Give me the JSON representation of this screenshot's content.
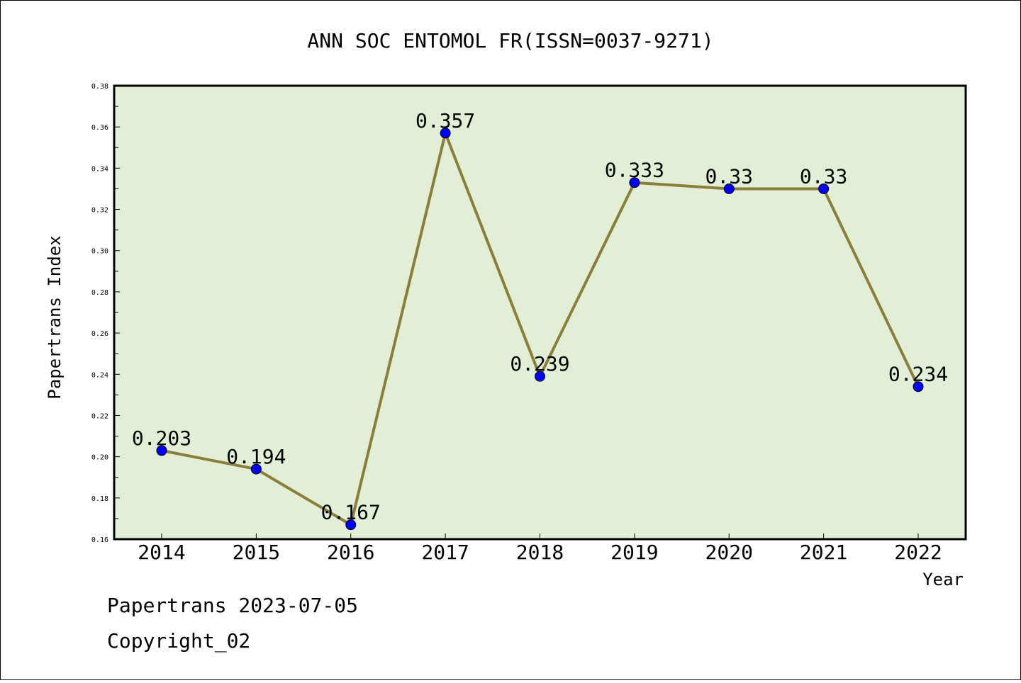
{
  "chart_data": {
    "type": "line",
    "title": "ANN SOC ENTOMOL FR(ISSN=0037-9271)",
    "xlabel": "Year",
    "ylabel": "Papertrans Index",
    "categories": [
      "2014",
      "2015",
      "2016",
      "2017",
      "2018",
      "2019",
      "2020",
      "2021",
      "2022"
    ],
    "series": [
      {
        "values": [
          0.203,
          0.194,
          0.167,
          0.357,
          0.239,
          0.333,
          0.33,
          0.33,
          0.234
        ],
        "labels": [
          "0.203",
          "0.194",
          "0.167",
          "0.357",
          "0.239",
          "0.333",
          "0.33",
          "0.33",
          "0.234"
        ]
      }
    ],
    "ylim": [
      0.16,
      0.38
    ],
    "yticks": [
      "0.16",
      "0.18",
      "0.20",
      "0.22",
      "0.24",
      "0.26",
      "0.28",
      "0.30",
      "0.32",
      "0.34",
      "0.36",
      "0.38"
    ],
    "grid": false,
    "legend": "none",
    "colors": {
      "plot_background": "#e2efd6",
      "line": "#8b7d3a",
      "marker": "#0000ff"
    }
  },
  "footer": {
    "line1": "Papertrans 2023-07-05",
    "line2": "Copyright_02"
  }
}
